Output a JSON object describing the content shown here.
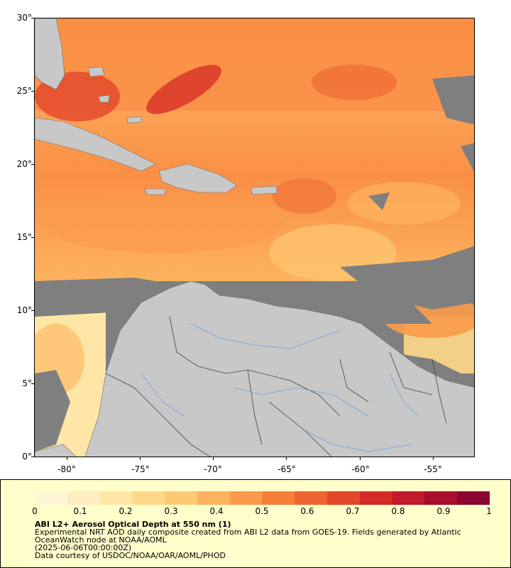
{
  "map": {
    "lat_ticks": [
      "30°",
      "25°",
      "20°",
      "15°",
      "10°",
      "5°",
      "0°"
    ],
    "lon_ticks": [
      "-80°",
      "-75°",
      "-70°",
      "-65°",
      "-60°",
      "-55°"
    ],
    "lat_range": [
      0,
      30
    ],
    "lon_range": [
      -82.3,
      -52.5
    ],
    "colors": {
      "no_data": "#7f7f7f",
      "land": "#c8c8c8",
      "rivers": "#6f9fd8",
      "borders": "#404040"
    }
  },
  "legend": {
    "colorbar_labels": [
      "0",
      "0.1",
      "0.2",
      "0.3",
      "0.4",
      "0.5",
      "0.6",
      "0.7",
      "0.8",
      "0.9",
      "1"
    ],
    "colorbar_range": [
      0,
      1
    ],
    "colorbar_colors": [
      "#fff6d5",
      "#ffefc0",
      "#ffe6a6",
      "#ffd98a",
      "#ffc873",
      "#fdb35e",
      "#fb9b4b",
      "#f6803b",
      "#ee6430",
      "#e2472a",
      "#d42a26",
      "#c11a2a",
      "#a80d2e",
      "#8c0631"
    ],
    "title": "ABI L2+ Aerosol Optical Depth at 550 nm (1)",
    "line1": "Experimental NRT AOD daily composite created from ABI L2 data from GOES-19. Fields generated by Atlantic",
    "line2": "OceanWatch node at NOAA/AOML",
    "line3": "(2025-06-06T00:00:00Z)",
    "line4": "Data courtesy of USDOC/NOAA/OAR/AOML/PHOD"
  }
}
